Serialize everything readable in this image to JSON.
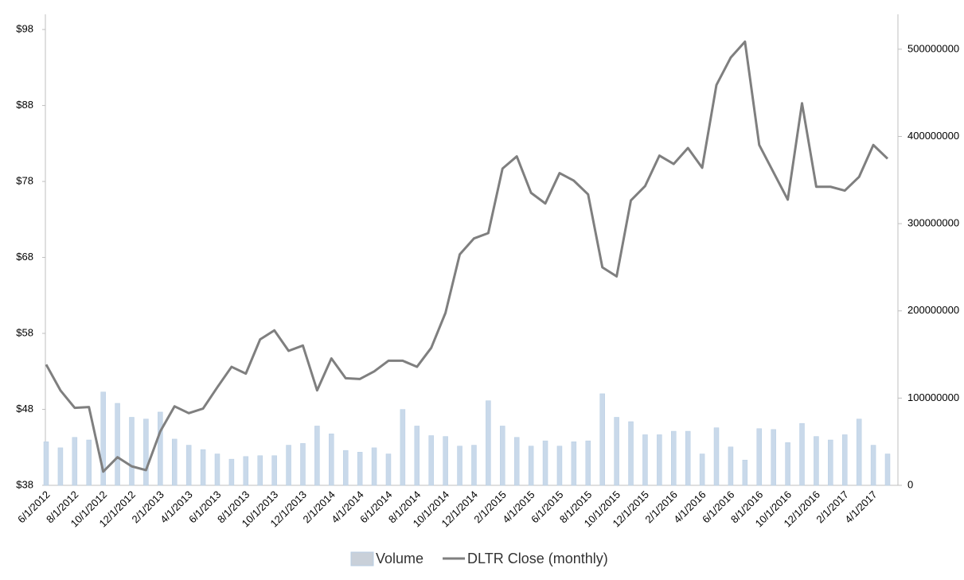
{
  "chart_data": {
    "type": "combo",
    "categories": [
      "6/1/2012",
      null,
      "8/1/2012",
      null,
      "10/1/2012",
      null,
      "12/1/2012",
      null,
      "2/1/2013",
      null,
      "4/1/2013",
      null,
      "6/1/2013",
      null,
      "8/1/2013",
      null,
      "10/1/2013",
      null,
      "12/1/2013",
      null,
      "2/1/2014",
      null,
      "4/1/2014",
      null,
      "6/1/2014",
      null,
      "8/1/2014",
      null,
      "10/1/2014",
      null,
      "12/1/2014",
      null,
      "2/1/2015",
      null,
      "4/1/2015",
      null,
      "6/1/2015",
      null,
      "8/1/2015",
      null,
      "10/1/2015",
      null,
      "12/1/2015",
      null,
      "2/1/2016",
      null,
      "4/1/2016",
      null,
      "6/1/2016",
      null,
      "8/1/2016",
      null,
      "10/1/2016",
      null,
      "12/1/2016",
      null,
      "2/1/2017",
      null,
      "4/1/2017",
      null
    ],
    "series": [
      {
        "name": "Volume",
        "type": "bar",
        "axis": "y2",
        "color": "#c9d9ea",
        "values": [
          50000000,
          43000000,
          55000000,
          52000000,
          107000000,
          94000000,
          78000000,
          76000000,
          84000000,
          53000000,
          46000000,
          41000000,
          36000000,
          30000000,
          33000000,
          34000000,
          34000000,
          46000000,
          48000000,
          68000000,
          59000000,
          40000000,
          38000000,
          43000000,
          36000000,
          87000000,
          68000000,
          57000000,
          56000000,
          45000000,
          46000000,
          97000000,
          68000000,
          55000000,
          45000000,
          51000000,
          45000000,
          50000000,
          51000000,
          105000000,
          78000000,
          73000000,
          58000000,
          58000000,
          62000000,
          62000000,
          36000000,
          66000000,
          44000000,
          29000000,
          65000000,
          64000000,
          49000000,
          71000000,
          56000000,
          52000000,
          58000000,
          76000000,
          46000000,
          36000000
        ]
      },
      {
        "name": "DLTR Close (monthly)",
        "type": "line",
        "color": "#7f7f7f",
        "values": [
          53.9,
          50.5,
          48.2,
          48.3,
          39.8,
          41.7,
          40.5,
          40.0,
          45.1,
          48.4,
          47.5,
          48.1,
          50.9,
          53.6,
          52.7,
          57.2,
          58.4,
          55.7,
          56.4,
          50.5,
          54.7,
          52.1,
          52.0,
          53.0,
          54.4,
          54.4,
          53.6,
          56.1,
          60.7,
          68.4,
          70.5,
          71.2,
          79.7,
          81.3,
          76.5,
          75.1,
          79.1,
          78.1,
          76.3,
          66.7,
          65.5,
          75.5,
          77.4,
          81.4,
          80.3,
          82.4,
          79.8,
          90.7,
          94.3,
          96.4,
          82.8,
          79.2,
          75.6,
          88.3,
          77.3,
          77.3,
          76.8,
          78.6,
          82.8,
          81.0
        ]
      }
    ],
    "ylim": [
      38,
      100
    ],
    "yticks": [
      {
        "value": 38,
        "label": "$38"
      },
      {
        "value": 48,
        "label": "$48"
      },
      {
        "value": 58,
        "label": "$58"
      },
      {
        "value": 68,
        "label": "$68"
      },
      {
        "value": 78,
        "label": "$78"
      },
      {
        "value": 88,
        "label": "$88"
      },
      {
        "value": 98,
        "label": "$98"
      }
    ],
    "y2lim": [
      0,
      540000000
    ],
    "y2ticks": [
      0,
      100000000,
      200000000,
      300000000,
      400000000,
      500000000
    ],
    "legend": "bottom"
  }
}
